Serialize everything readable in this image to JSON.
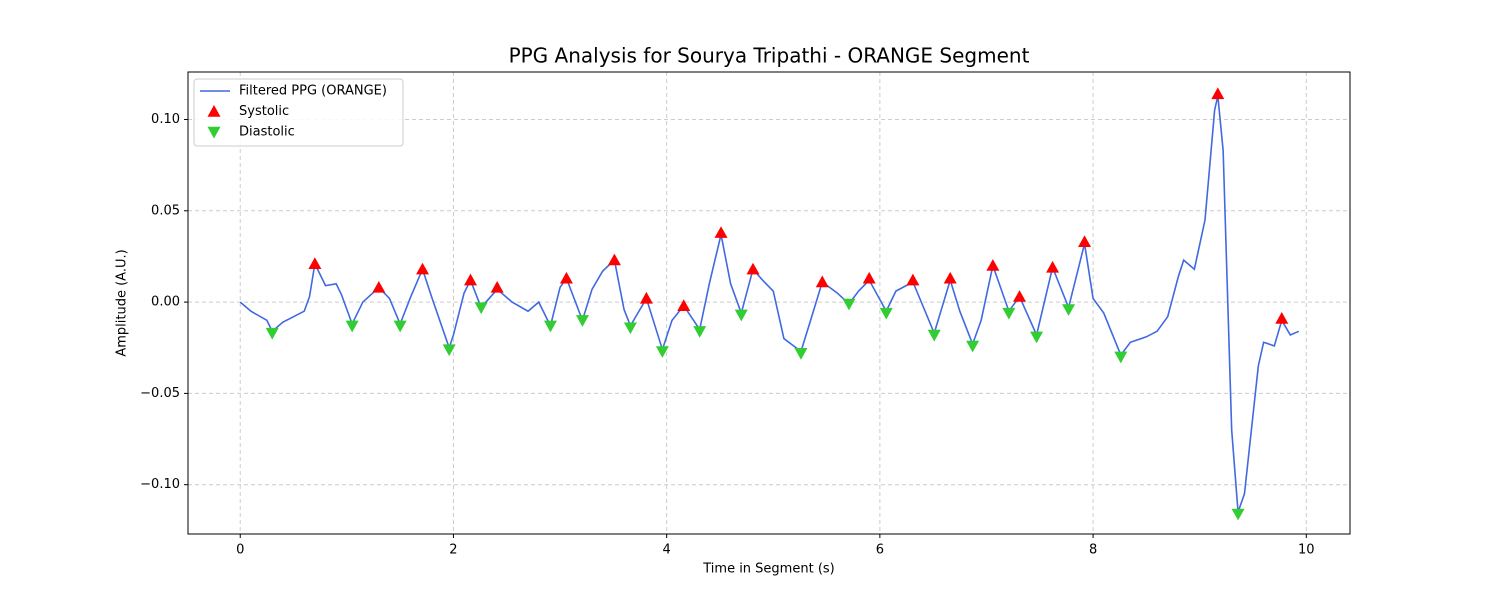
{
  "chart_data": {
    "type": "line",
    "title": "PPG Analysis for Sourya Tripathi - ORANGE Segment",
    "xlabel": "Time in Segment (s)",
    "ylabel": "Amplitude (A.U.)",
    "xlim": [
      -0.49,
      10.41
    ],
    "ylim": [
      -0.127,
      0.126
    ],
    "xticks": [
      0,
      2,
      4,
      6,
      8,
      10
    ],
    "yticks": [
      {
        "value": -0.1,
        "label": "−0.10"
      },
      {
        "value": -0.05,
        "label": "−0.05"
      },
      {
        "value": 0,
        "label": "0.00"
      },
      0.05,
      {
        "value": 0.1,
        "label": "0.10"
      }
    ],
    "grid": true,
    "legend": "upper left",
    "series": [
      {
        "name": "Filtered PPG (ORANGE)",
        "type": "line",
        "color": "#4169e1",
        "x": [
          0,
          0.1,
          0.25,
          0.3,
          0.4,
          0.5,
          0.6,
          0.65,
          0.7,
          0.8,
          0.9,
          0.95,
          1.05,
          1.15,
          1.3,
          1.4,
          1.5,
          1.6,
          1.71,
          1.8,
          1.96,
          2.0,
          2.1,
          2.16,
          2.26,
          2.41,
          2.55,
          2.7,
          2.8,
          2.91,
          3.0,
          3.06,
          3.21,
          3.3,
          3.4,
          3.51,
          3.6,
          3.66,
          3.81,
          3.96,
          4.05,
          4.16,
          4.31,
          4.4,
          4.51,
          4.6,
          4.7,
          4.81,
          4.9,
          5.0,
          5.1,
          5.26,
          5.35,
          5.46,
          5.6,
          5.71,
          5.8,
          5.9,
          6.06,
          6.15,
          6.31,
          6.51,
          6.66,
          6.75,
          6.87,
          6.95,
          7.06,
          7.21,
          7.31,
          7.47,
          7.62,
          7.77,
          7.92,
          8.0,
          8.1,
          8.26,
          8.35,
          8.5,
          8.6,
          8.7,
          8.8,
          8.85,
          8.95,
          9.05,
          9.14,
          9.17,
          9.22,
          9.3,
          9.36,
          9.42,
          9.55,
          9.6,
          9.7,
          9.77,
          9.85,
          9.93
        ],
        "values": [
          0.0,
          -0.005,
          -0.01,
          -0.016,
          -0.011,
          -0.008,
          -0.005,
          0.003,
          0.021,
          0.009,
          0.01,
          0.004,
          -0.012,
          0.0,
          0.008,
          0.002,
          -0.012,
          0.003,
          0.018,
          0.002,
          -0.025,
          -0.018,
          0.005,
          0.012,
          -0.003,
          0.007,
          0.0,
          -0.005,
          0.0,
          -0.013,
          0.008,
          0.013,
          -0.01,
          0.007,
          0.017,
          0.023,
          -0.004,
          -0.013,
          0.002,
          -0.026,
          -0.01,
          -0.002,
          -0.015,
          0.01,
          0.037,
          0.01,
          -0.006,
          0.018,
          0.012,
          0.006,
          -0.02,
          -0.027,
          -0.01,
          0.011,
          0.005,
          -0.001,
          0.006,
          0.012,
          -0.005,
          0.006,
          0.011,
          -0.017,
          0.012,
          -0.005,
          -0.023,
          -0.01,
          0.02,
          -0.005,
          0.003,
          -0.018,
          0.019,
          -0.003,
          0.032,
          0.002,
          -0.006,
          -0.029,
          -0.022,
          -0.019,
          -0.016,
          -0.008,
          0.014,
          0.023,
          0.018,
          0.045,
          0.105,
          0.113,
          0.083,
          -0.07,
          -0.115,
          -0.105,
          -0.035,
          -0.022,
          -0.024,
          -0.01,
          -0.018,
          -0.016
        ]
      },
      {
        "name": "Systolic",
        "type": "scatter",
        "marker": "triangle-up",
        "color": "#ff0000",
        "x": [
          0.7,
          1.3,
          1.71,
          2.16,
          2.41,
          3.06,
          3.51,
          3.81,
          4.16,
          4.51,
          4.81,
          5.46,
          5.9,
          6.31,
          6.66,
          7.06,
          7.31,
          7.62,
          7.92,
          9.17,
          9.77
        ],
        "values": [
          0.021,
          0.008,
          0.018,
          0.012,
          0.008,
          0.013,
          0.023,
          0.002,
          -0.002,
          0.038,
          0.018,
          0.011,
          0.013,
          0.012,
          0.013,
          0.02,
          0.003,
          0.019,
          0.033,
          0.114,
          -0.009
        ]
      },
      {
        "name": "Diastolic",
        "type": "scatter",
        "marker": "triangle-down",
        "color": "#32cd32",
        "x": [
          0.3,
          1.05,
          1.5,
          1.96,
          2.26,
          2.91,
          3.21,
          3.66,
          3.96,
          4.31,
          4.7,
          5.26,
          5.71,
          6.06,
          6.51,
          6.87,
          7.21,
          7.47,
          7.77,
          8.26,
          9.36
        ],
        "values": [
          -0.017,
          -0.013,
          -0.013,
          -0.026,
          -0.003,
          -0.013,
          -0.01,
          -0.014,
          -0.027,
          -0.016,
          -0.007,
          -0.028,
          -0.001,
          -0.006,
          -0.018,
          -0.024,
          -0.006,
          -0.019,
          -0.004,
          -0.03,
          -0.116
        ]
      }
    ]
  }
}
